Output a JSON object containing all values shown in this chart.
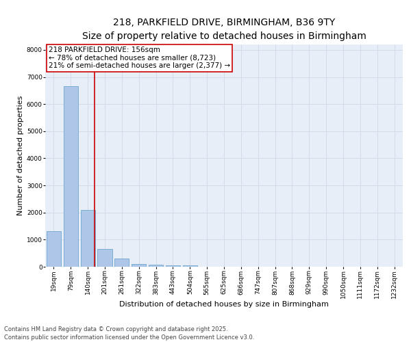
{
  "title_line1": "218, PARKFIELD DRIVE, BIRMINGHAM, B36 9TY",
  "title_line2": "Size of property relative to detached houses in Birmingham",
  "xlabel": "Distribution of detached houses by size in Birmingham",
  "ylabel": "Number of detached properties",
  "bar_labels": [
    "19sqm",
    "79sqm",
    "140sqm",
    "201sqm",
    "261sqm",
    "322sqm",
    "383sqm",
    "443sqm",
    "504sqm",
    "565sqm",
    "625sqm",
    "686sqm",
    "747sqm",
    "807sqm",
    "868sqm",
    "929sqm",
    "990sqm",
    "1050sqm",
    "1111sqm",
    "1172sqm",
    "1232sqm"
  ],
  "bar_values": [
    1300,
    6650,
    2100,
    650,
    300,
    110,
    80,
    50,
    50,
    0,
    0,
    0,
    0,
    0,
    0,
    0,
    0,
    0,
    0,
    0,
    0
  ],
  "bar_color": "#aec6e8",
  "bar_edge_color": "#5a9ac8",
  "grid_color": "#d0d8e8",
  "annotation_box_text": "218 PARKFIELD DRIVE: 156sqm\n← 78% of detached houses are smaller (8,723)\n21% of semi-detached houses are larger (2,377) →",
  "annotation_box_edge_color": "#cc0000",
  "vline_x": 2.4,
  "vline_color": "#cc0000",
  "ylim": [
    0,
    8200
  ],
  "yticks": [
    0,
    1000,
    2000,
    3000,
    4000,
    5000,
    6000,
    7000,
    8000
  ],
  "footer_line1": "Contains HM Land Registry data © Crown copyright and database right 2025.",
  "footer_line2": "Contains public sector information licensed under the Open Government Licence v3.0.",
  "bg_color": "#ffffff",
  "plot_bg_color": "#e8eef8",
  "title_fontsize": 10,
  "subtitle_fontsize": 9,
  "axis_label_fontsize": 8,
  "tick_fontsize": 6.5,
  "annotation_fontsize": 7.5,
  "footer_fontsize": 6
}
